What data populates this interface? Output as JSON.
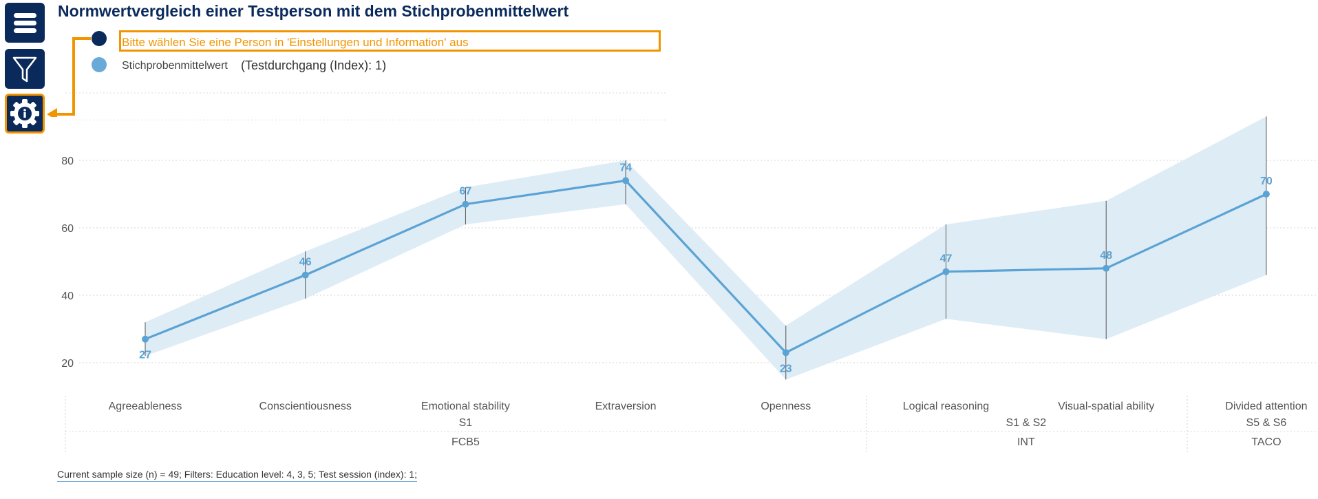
{
  "header": {
    "title": "Normwertvergleich einer Testperson mit dem Stichprobenmittelwert"
  },
  "sidebar": {
    "buttons": [
      {
        "name": "menu",
        "icon": "hamburger-icon"
      },
      {
        "name": "filter",
        "icon": "filter-icon"
      },
      {
        "name": "settings",
        "icon": "gear-info-icon"
      }
    ]
  },
  "legend": {
    "person_hint": "Bitte wählen Sie eine Person in 'Einstellungen und Information' aus",
    "mean_label": "Stichprobenmittelwert",
    "session_label": "(Testdurchgang (Index): 1)"
  },
  "colors": {
    "navy": "#0b2a5c",
    "accent_orange": "#f29400",
    "series_blue": "#5ba3d4",
    "band_blue": "#dcebf6"
  },
  "chart_data": {
    "type": "line",
    "title": "Normwertvergleich einer Testperson mit dem Stichprobenmittelwert",
    "categories": [
      "Agreeableness",
      "Conscientiousness",
      "Emotional stability",
      "Extraversion",
      "Openness",
      "Logical reasoning",
      "Visual-spatial ability",
      "Divided attention"
    ],
    "series": [
      {
        "name": "Stichprobenmittelwert",
        "values": [
          27,
          46,
          67,
          74,
          23,
          47,
          48,
          70
        ],
        "labels": [
          "27",
          "46",
          "67",
          "74",
          "23",
          "47",
          "48",
          "70"
        ],
        "error_low": [
          22,
          39,
          61,
          67,
          15,
          33,
          27,
          46
        ],
        "error_high": [
          32,
          53,
          72,
          80,
          31,
          61,
          68,
          93
        ]
      }
    ],
    "yticks": [
      20,
      40,
      60,
      80
    ],
    "ylim": [
      12,
      100
    ],
    "grid": "dotted horizontal",
    "group_level1": [
      {
        "label": "S1",
        "span": [
          0,
          4
        ]
      },
      {
        "label": "S1 & S2",
        "span": [
          5,
          6
        ]
      },
      {
        "label": "S5 & S6",
        "span": [
          7,
          7
        ]
      }
    ],
    "group_level2": [
      {
        "label": "FCB5",
        "span": [
          0,
          4
        ]
      },
      {
        "label": "INT",
        "span": [
          5,
          6
        ]
      },
      {
        "label": "TACO",
        "span": [
          7,
          7
        ]
      }
    ]
  },
  "footer": {
    "text": "Current sample size (n) = 49; Filters: Education level: 4, 3, 5; Test session (index): 1;"
  }
}
